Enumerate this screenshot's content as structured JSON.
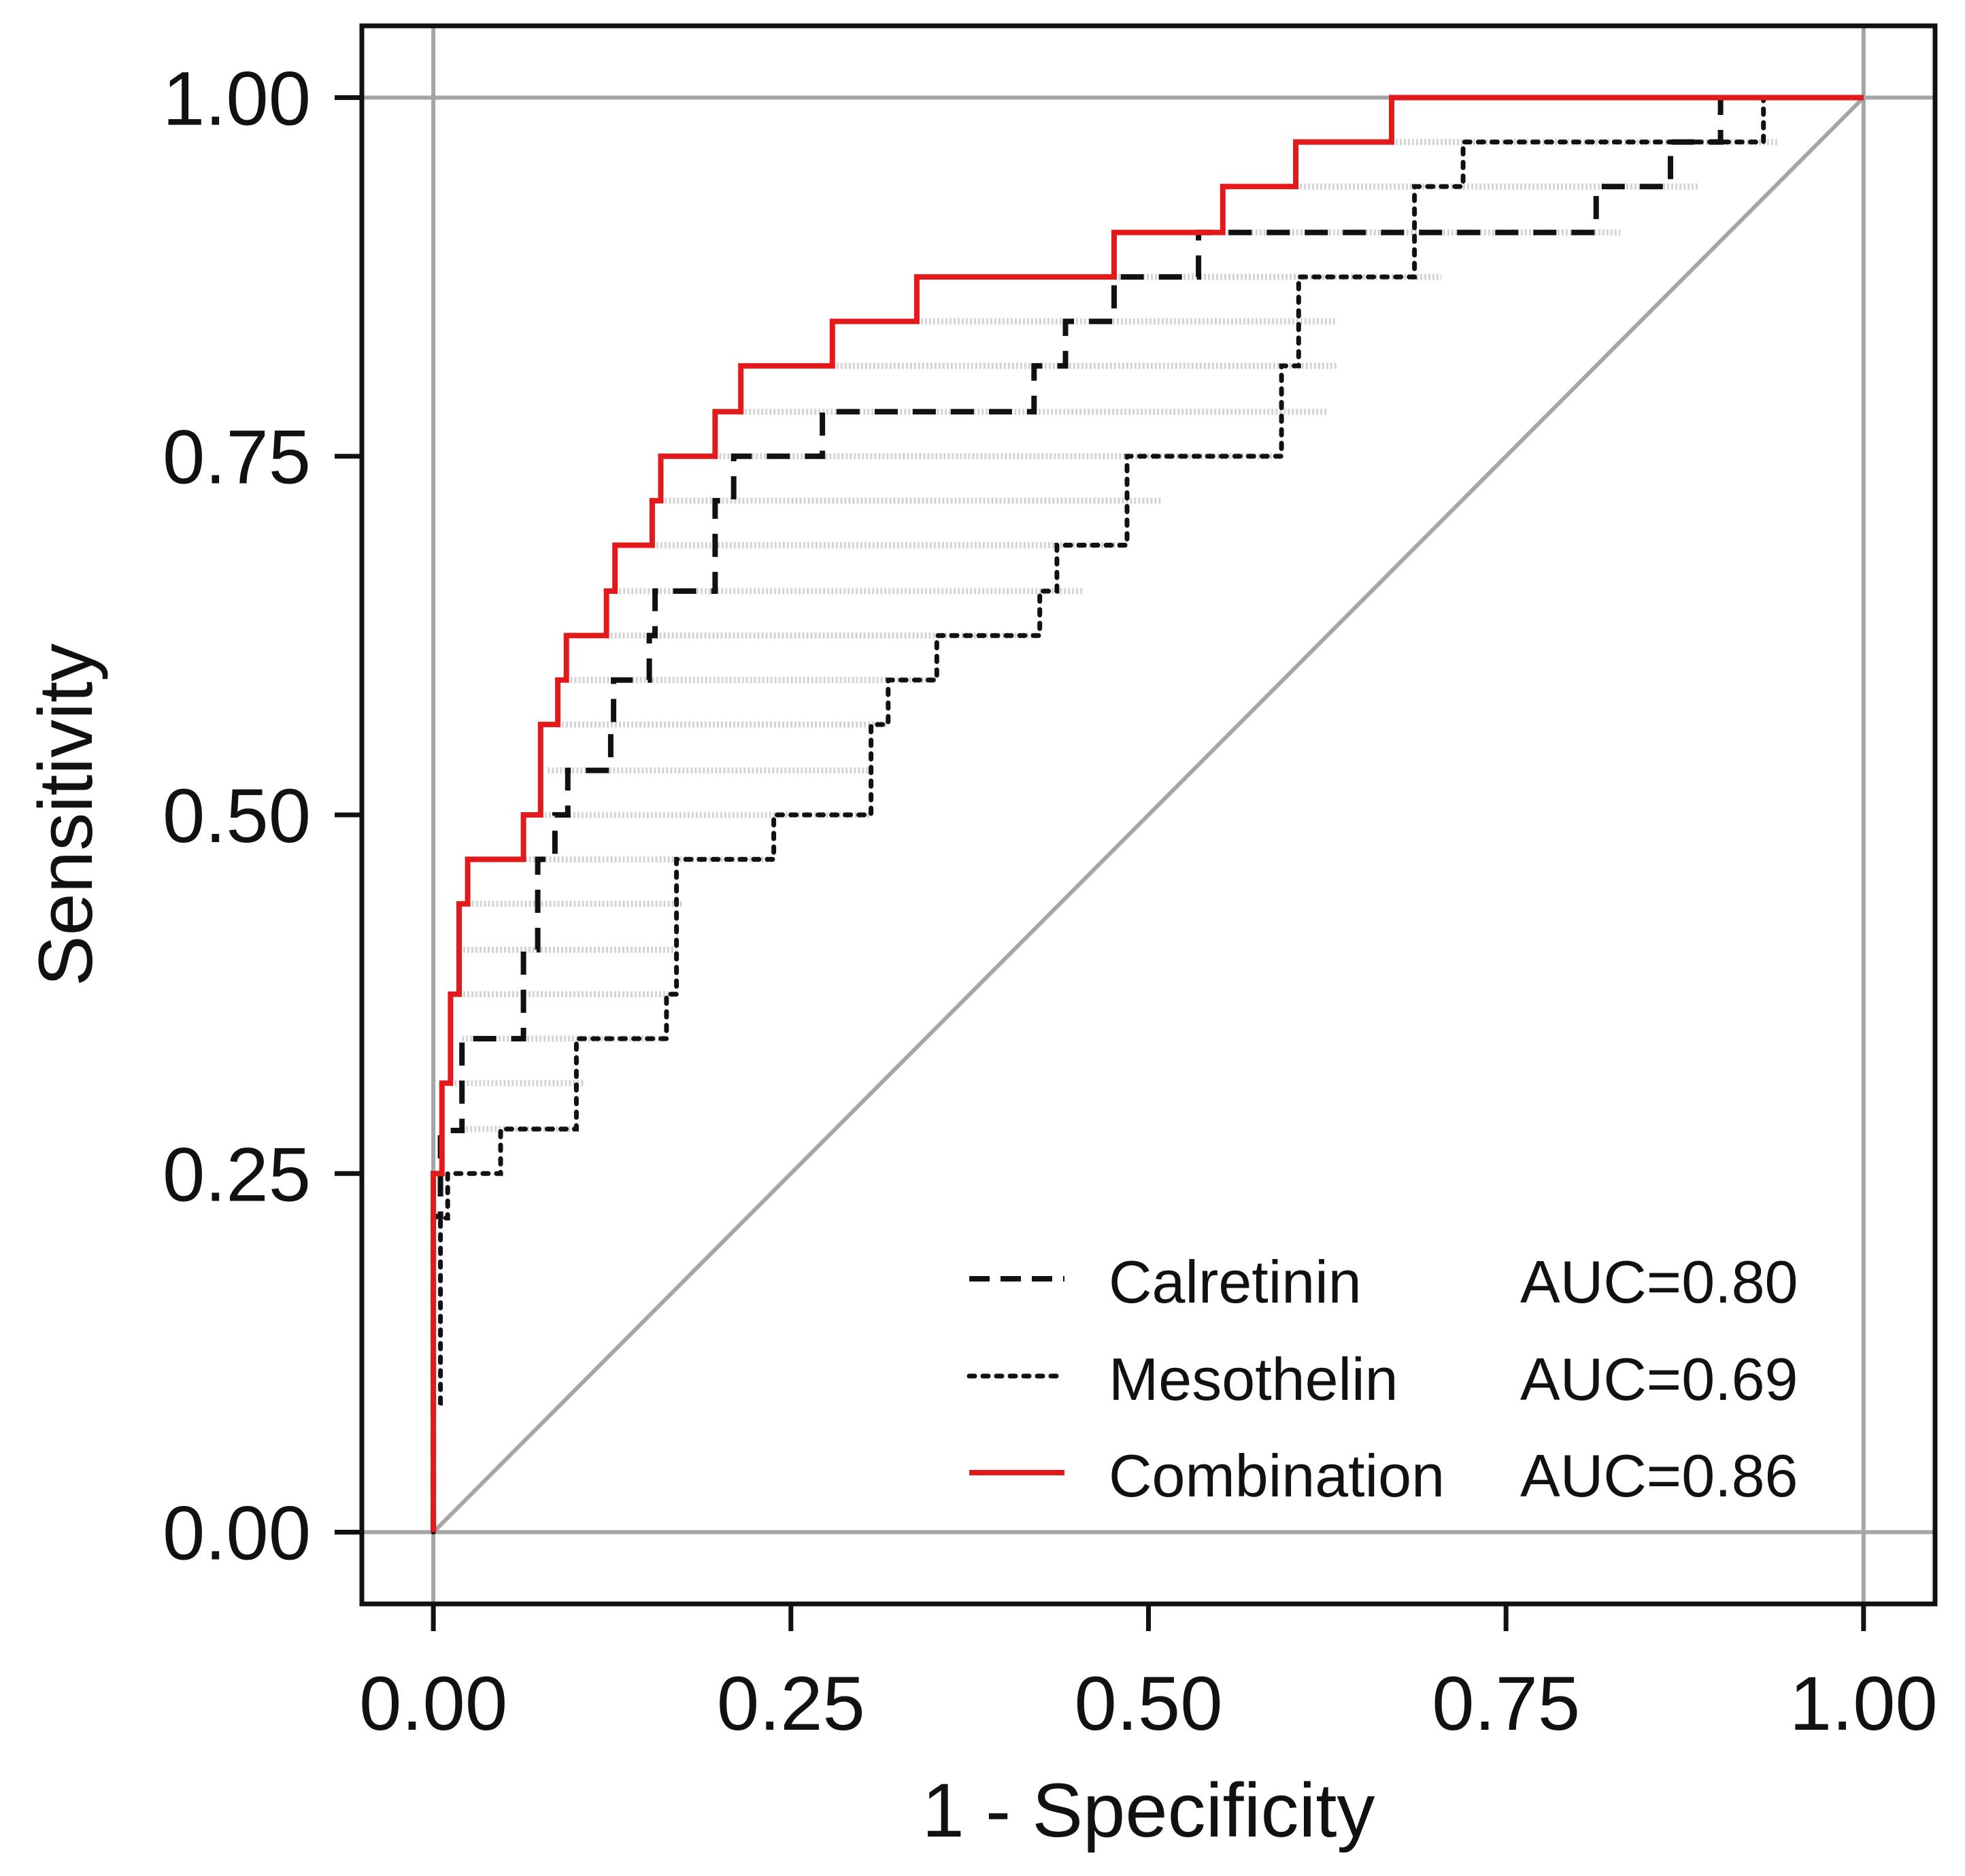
{
  "chart_data": {
    "type": "line",
    "subtype": "roc",
    "title": "",
    "xlabel": "1 - Specificity",
    "ylabel": "Sensitivity",
    "xlim": [
      -0.05,
      1.05
    ],
    "ylim": [
      -0.05,
      1.05
    ],
    "xticks": [
      {
        "value": 0,
        "label": "0.00"
      },
      {
        "value": 0.25,
        "label": "0.25"
      },
      {
        "value": 0.5,
        "label": "0.50"
      },
      {
        "value": 0.75,
        "label": "0.75"
      },
      {
        "value": 1,
        "label": "1.00"
      }
    ],
    "yticks": [
      {
        "value": 0,
        "label": "0.00"
      },
      {
        "value": 0.25,
        "label": "0.25"
      },
      {
        "value": 0.5,
        "label": "0.50"
      },
      {
        "value": 0.75,
        "label": "0.75"
      },
      {
        "value": 1,
        "label": "1.00"
      }
    ],
    "reference_lines": {
      "diagonal": [
        [
          0,
          0
        ],
        [
          1,
          1
        ]
      ],
      "horizontal": [
        0,
        1
      ],
      "vertical": [
        0,
        1
      ],
      "color": "#a6a6a6"
    },
    "legend_position": "bottom-right",
    "series": [
      {
        "name": "Calretinin",
        "auc_label": "AUC=0.80",
        "color": "#111111",
        "line_style": "dashed",
        "points": [
          [
            0,
            0
          ],
          [
            0,
            0.22
          ],
          [
            0.005,
            0.22
          ],
          [
            0.005,
            0.28
          ],
          [
            0.02,
            0.28
          ],
          [
            0.02,
            0.344
          ],
          [
            0.063,
            0.344
          ],
          [
            0.063,
            0.406
          ],
          [
            0.073,
            0.406
          ],
          [
            0.073,
            0.469
          ],
          [
            0.085,
            0.469
          ],
          [
            0.085,
            0.5
          ],
          [
            0.094,
            0.5
          ],
          [
            0.094,
            0.531
          ],
          [
            0.124,
            0.531
          ],
          [
            0.124,
            0.563
          ],
          [
            0.126,
            0.563
          ],
          [
            0.126,
            0.594
          ],
          [
            0.151,
            0.594
          ],
          [
            0.151,
            0.625
          ],
          [
            0.155,
            0.625
          ],
          [
            0.155,
            0.656
          ],
          [
            0.197,
            0.656
          ],
          [
            0.197,
            0.719
          ],
          [
            0.21,
            0.719
          ],
          [
            0.21,
            0.75
          ],
          [
            0.272,
            0.75
          ],
          [
            0.272,
            0.781
          ],
          [
            0.42,
            0.781
          ],
          [
            0.42,
            0.813
          ],
          [
            0.442,
            0.813
          ],
          [
            0.442,
            0.844
          ],
          [
            0.476,
            0.844
          ],
          [
            0.476,
            0.875
          ],
          [
            0.535,
            0.875
          ],
          [
            0.535,
            0.906
          ],
          [
            0.813,
            0.906
          ],
          [
            0.813,
            0.938
          ],
          [
            0.865,
            0.938
          ],
          [
            0.865,
            0.969
          ],
          [
            0.9,
            0.969
          ],
          [
            0.9,
            1
          ],
          [
            1,
            1
          ]
        ]
      },
      {
        "name": "Mesothelin",
        "auc_label": "AUC=0.69",
        "color": "#111111",
        "line_style": "dotted",
        "points": [
          [
            0,
            0
          ],
          [
            0,
            0.09
          ],
          [
            0.005,
            0.09
          ],
          [
            0.005,
            0.219
          ],
          [
            0.01,
            0.219
          ],
          [
            0.01,
            0.25
          ],
          [
            0.047,
            0.25
          ],
          [
            0.047,
            0.281
          ],
          [
            0.1,
            0.281
          ],
          [
            0.1,
            0.344
          ],
          [
            0.163,
            0.344
          ],
          [
            0.163,
            0.375
          ],
          [
            0.17,
            0.375
          ],
          [
            0.17,
            0.469
          ],
          [
            0.238,
            0.469
          ],
          [
            0.238,
            0.5
          ],
          [
            0.306,
            0.5
          ],
          [
            0.306,
            0.563
          ],
          [
            0.318,
            0.563
          ],
          [
            0.318,
            0.594
          ],
          [
            0.352,
            0.594
          ],
          [
            0.352,
            0.625
          ],
          [
            0.424,
            0.625
          ],
          [
            0.424,
            0.656
          ],
          [
            0.436,
            0.656
          ],
          [
            0.436,
            0.688
          ],
          [
            0.485,
            0.688
          ],
          [
            0.485,
            0.75
          ],
          [
            0.593,
            0.75
          ],
          [
            0.593,
            0.813
          ],
          [
            0.605,
            0.813
          ],
          [
            0.605,
            0.875
          ],
          [
            0.686,
            0.875
          ],
          [
            0.686,
            0.938
          ],
          [
            0.72,
            0.938
          ],
          [
            0.72,
            0.969
          ],
          [
            0.93,
            0.969
          ],
          [
            0.93,
            1
          ],
          [
            1,
            1
          ]
        ]
      },
      {
        "name": "Combination",
        "auc_label": "AUC=0.86",
        "color": "#e31a1c",
        "line_style": "solid",
        "points": [
          [
            0,
            0
          ],
          [
            0,
            0.25
          ],
          [
            0.006,
            0.25
          ],
          [
            0.006,
            0.313
          ],
          [
            0.012,
            0.313
          ],
          [
            0.012,
            0.375
          ],
          [
            0.018,
            0.375
          ],
          [
            0.018,
            0.438
          ],
          [
            0.024,
            0.438
          ],
          [
            0.024,
            0.469
          ],
          [
            0.063,
            0.469
          ],
          [
            0.063,
            0.5
          ],
          [
            0.075,
            0.5
          ],
          [
            0.075,
            0.563
          ],
          [
            0.087,
            0.563
          ],
          [
            0.087,
            0.594
          ],
          [
            0.093,
            0.594
          ],
          [
            0.093,
            0.625
          ],
          [
            0.121,
            0.625
          ],
          [
            0.121,
            0.656
          ],
          [
            0.127,
            0.656
          ],
          [
            0.127,
            0.688
          ],
          [
            0.153,
            0.688
          ],
          [
            0.153,
            0.719
          ],
          [
            0.159,
            0.719
          ],
          [
            0.159,
            0.75
          ],
          [
            0.197,
            0.75
          ],
          [
            0.197,
            0.781
          ],
          [
            0.215,
            0.781
          ],
          [
            0.215,
            0.813
          ],
          [
            0.279,
            0.813
          ],
          [
            0.279,
            0.844
          ],
          [
            0.338,
            0.844
          ],
          [
            0.338,
            0.875
          ],
          [
            0.476,
            0.875
          ],
          [
            0.476,
            0.906
          ],
          [
            0.552,
            0.906
          ],
          [
            0.552,
            0.938
          ],
          [
            0.603,
            0.938
          ],
          [
            0.603,
            0.969
          ],
          [
            0.67,
            0.969
          ],
          [
            0.67,
            1
          ],
          [
            1,
            1
          ]
        ]
      }
    ],
    "confidence_band": {
      "description": "light grey horizontal bands at each sensitivity step",
      "color": "#d4d4d4",
      "bands": [
        {
          "y": 0.281,
          "x1": 0.02,
          "x2": 0.1
        },
        {
          "y": 0.313,
          "x1": 0.012,
          "x2": 0.105
        },
        {
          "y": 0.344,
          "x1": 0.02,
          "x2": 0.163
        },
        {
          "y": 0.375,
          "x1": 0.018,
          "x2": 0.17
        },
        {
          "y": 0.406,
          "x1": 0.018,
          "x2": 0.17
        },
        {
          "y": 0.438,
          "x1": 0.024,
          "x2": 0.175
        },
        {
          "y": 0.469,
          "x1": 0.024,
          "x2": 0.238
        },
        {
          "y": 0.5,
          "x1": 0.075,
          "x2": 0.306
        },
        {
          "y": 0.531,
          "x1": 0.08,
          "x2": 0.306
        },
        {
          "y": 0.563,
          "x1": 0.087,
          "x2": 0.318
        },
        {
          "y": 0.594,
          "x1": 0.093,
          "x2": 0.352
        },
        {
          "y": 0.625,
          "x1": 0.121,
          "x2": 0.424
        },
        {
          "y": 0.656,
          "x1": 0.127,
          "x2": 0.455
        },
        {
          "y": 0.688,
          "x1": 0.153,
          "x2": 0.485
        },
        {
          "y": 0.719,
          "x1": 0.159,
          "x2": 0.51
        },
        {
          "y": 0.75,
          "x1": 0.197,
          "x2": 0.593
        },
        {
          "y": 0.781,
          "x1": 0.215,
          "x2": 0.625
        },
        {
          "y": 0.813,
          "x1": 0.279,
          "x2": 0.632
        },
        {
          "y": 0.844,
          "x1": 0.338,
          "x2": 0.632
        },
        {
          "y": 0.875,
          "x1": 0.476,
          "x2": 0.705
        },
        {
          "y": 0.906,
          "x1": 0.552,
          "x2": 0.83
        },
        {
          "y": 0.938,
          "x1": 0.603,
          "x2": 0.885
        },
        {
          "y": 0.969,
          "x1": 0.67,
          "x2": 0.94
        }
      ]
    }
  }
}
